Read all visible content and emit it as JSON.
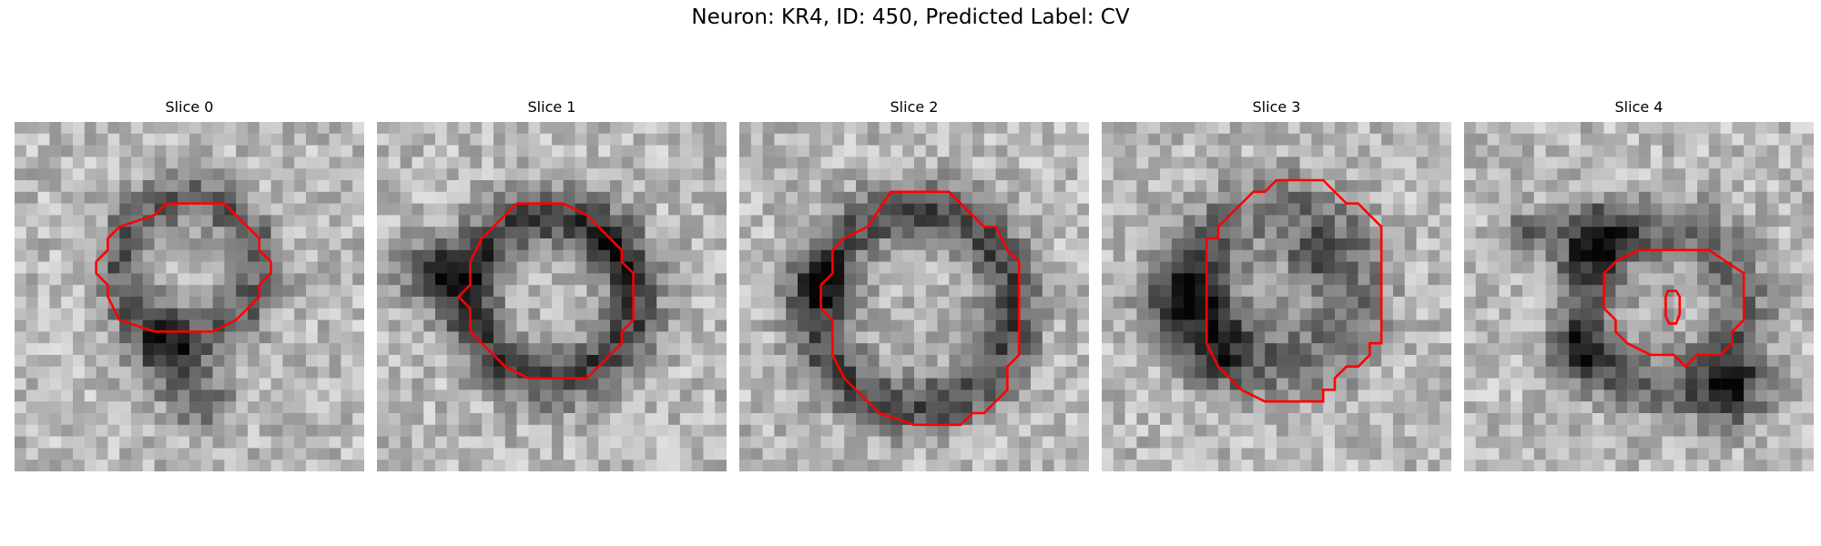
{
  "figure": {
    "title": "Neuron: KR4, ID: 450, Predicted Label: CV"
  },
  "panels": [
    {
      "title": "Slice 0",
      "image": {
        "kind": "grayscale microscopy patch",
        "grid": 30,
        "seed": 11,
        "ring_center": [
          15,
          12.5
        ],
        "ring_radius": 6,
        "ring_width": 2.2,
        "ring_darkness": 90,
        "inner_brightness": 40,
        "dark_blobs": [
          [
            13,
            20,
            3,
            110
          ],
          [
            16,
            24,
            2.5,
            90
          ]
        ]
      },
      "contours": [
        [
          [
            13,
            7
          ],
          [
            18,
            7
          ],
          [
            21,
            10
          ],
          [
            21,
            11
          ],
          [
            22,
            12
          ],
          [
            22,
            13
          ],
          [
            21,
            14
          ],
          [
            21,
            15
          ],
          [
            19,
            17
          ],
          [
            17,
            18
          ],
          [
            12,
            18
          ],
          [
            9,
            17
          ],
          [
            8,
            15
          ],
          [
            8,
            14
          ],
          [
            7,
            13
          ],
          [
            7,
            12
          ],
          [
            8,
            11
          ],
          [
            8,
            10
          ],
          [
            9,
            9
          ],
          [
            12,
            8
          ]
        ]
      ],
      "contour_color": "#ff0000"
    },
    {
      "title": "Slice 1",
      "image": {
        "kind": "grayscale microscopy patch",
        "grid": 30,
        "seed": 23,
        "ring_center": [
          15,
          15
        ],
        "ring_radius": 7,
        "ring_width": 2.5,
        "ring_darkness": 120,
        "inner_brightness": 60,
        "dark_blobs": [
          [
            5,
            13,
            3,
            120
          ],
          [
            20,
            11,
            2,
            60
          ]
        ]
      },
      "contours": [
        [
          [
            12,
            7
          ],
          [
            16,
            7
          ],
          [
            18,
            8
          ],
          [
            20,
            10
          ],
          [
            21,
            11
          ],
          [
            21,
            12
          ],
          [
            22,
            13
          ],
          [
            22,
            17
          ],
          [
            21,
            18
          ],
          [
            21,
            19
          ],
          [
            19,
            21
          ],
          [
            18,
            22
          ],
          [
            13,
            22
          ],
          [
            11,
            21
          ],
          [
            9,
            19
          ],
          [
            8,
            18
          ],
          [
            8,
            16
          ],
          [
            7,
            15
          ],
          [
            8,
            14
          ],
          [
            8,
            12
          ],
          [
            9,
            10
          ],
          [
            11,
            8
          ]
        ]
      ],
      "contour_color": "#ff0000"
    },
    {
      "title": "Slice 2",
      "image": {
        "kind": "grayscale microscopy patch",
        "grid": 30,
        "seed": 37,
        "ring_center": [
          15,
          16
        ],
        "ring_radius": 8.5,
        "ring_width": 2.5,
        "ring_darkness": 110,
        "inner_brightness": 45,
        "dark_blobs": [
          [
            7,
            14,
            2.5,
            90
          ]
        ]
      },
      "contours": [
        [
          [
            13,
            6
          ],
          [
            18,
            6
          ],
          [
            21,
            9
          ],
          [
            22,
            9
          ],
          [
            23,
            11
          ],
          [
            24,
            12
          ],
          [
            24,
            20
          ],
          [
            23,
            21
          ],
          [
            23,
            23
          ],
          [
            21,
            25
          ],
          [
            20,
            25
          ],
          [
            19,
            26
          ],
          [
            15,
            26
          ],
          [
            12,
            25
          ],
          [
            11,
            24
          ],
          [
            10,
            23
          ],
          [
            9,
            22
          ],
          [
            8,
            20
          ],
          [
            8,
            17
          ],
          [
            7,
            16
          ],
          [
            7,
            14
          ],
          [
            8,
            13
          ],
          [
            8,
            11
          ],
          [
            9,
            10
          ],
          [
            11,
            9
          ]
        ]
      ],
      "contour_color": "#ff0000"
    },
    {
      "title": "Slice 3",
      "image": {
        "kind": "grayscale microscopy patch",
        "grid": 30,
        "seed": 53,
        "ring_center": [
          15,
          14
        ],
        "ring_radius": 7,
        "ring_width": 3,
        "ring_darkness": 70,
        "inner_brightness": 10,
        "dark_blobs": [
          [
            7,
            15,
            3.5,
            120
          ],
          [
            10,
            20,
            3,
            90
          ],
          [
            18,
            12,
            2.5,
            60
          ]
        ]
      },
      "contours": [
        [
          [
            15,
            5
          ],
          [
            19,
            5
          ],
          [
            21,
            7
          ],
          [
            22,
            7
          ],
          [
            24,
            9
          ],
          [
            24,
            19
          ],
          [
            23,
            19
          ],
          [
            23,
            20
          ],
          [
            22,
            21
          ],
          [
            21,
            21
          ],
          [
            20,
            22
          ],
          [
            20,
            23
          ],
          [
            19,
            23
          ],
          [
            19,
            24
          ],
          [
            17,
            24
          ],
          [
            14,
            24
          ],
          [
            12,
            23
          ],
          [
            11,
            22
          ],
          [
            10,
            21
          ],
          [
            9,
            19
          ],
          [
            9,
            18
          ],
          [
            9,
            14
          ],
          [
            9,
            11
          ],
          [
            9,
            10
          ],
          [
            10,
            10
          ],
          [
            10,
            9
          ],
          [
            11,
            8
          ],
          [
            12,
            7
          ],
          [
            13,
            6
          ],
          [
            14,
            6
          ]
        ]
      ],
      "contour_color": "#ff0000"
    },
    {
      "title": "Slice 4",
      "image": {
        "kind": "grayscale microscopy patch",
        "grid": 30,
        "seed": 71,
        "ring_center": [
          17,
          16
        ],
        "ring_radius": 7,
        "ring_width": 2.5,
        "ring_darkness": 80,
        "inner_brightness": 20,
        "dark_blobs": [
          [
            11,
            10,
            3,
            130
          ],
          [
            10,
            20,
            2.5,
            110
          ],
          [
            23,
            23,
            3,
            130
          ],
          [
            5,
            10,
            2,
            90
          ]
        ]
      },
      "contours": [
        [
          [
            15,
            11
          ],
          [
            21,
            11
          ],
          [
            24,
            13
          ],
          [
            24,
            17
          ],
          [
            23,
            18
          ],
          [
            23,
            19
          ],
          [
            22,
            20
          ],
          [
            20,
            20
          ],
          [
            19,
            21
          ],
          [
            18,
            20
          ],
          [
            16,
            20
          ],
          [
            14,
            19
          ],
          [
            13,
            18
          ],
          [
            13,
            17
          ],
          [
            12,
            16
          ],
          [
            12,
            13
          ],
          [
            13,
            12
          ]
        ],
        [
          [
            17.5,
            14.5
          ],
          [
            18.2,
            14.5
          ],
          [
            18.5,
            15
          ],
          [
            18.5,
            16.5
          ],
          [
            18.2,
            17.3
          ],
          [
            17.6,
            17.3
          ],
          [
            17.3,
            16.7
          ],
          [
            17.3,
            15
          ],
          [
            17.5,
            14.5
          ]
        ]
      ],
      "contour_color": "#ff0000"
    }
  ]
}
